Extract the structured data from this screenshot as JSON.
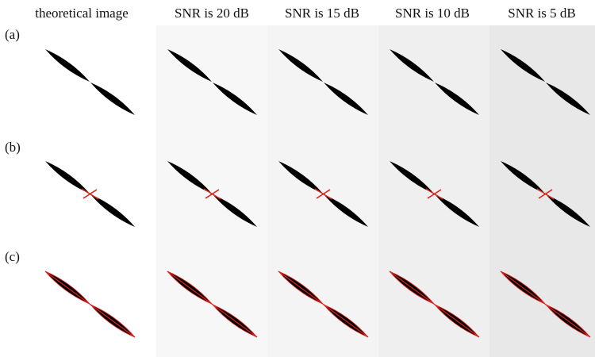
{
  "columns": [
    "theoretical image",
    "SNR is 20 dB",
    "SNR is 15 dB",
    "SNR is 10 dB",
    "SNR is 5 dB"
  ],
  "rows": [
    "(a)",
    "(b)",
    "(c)"
  ]
}
